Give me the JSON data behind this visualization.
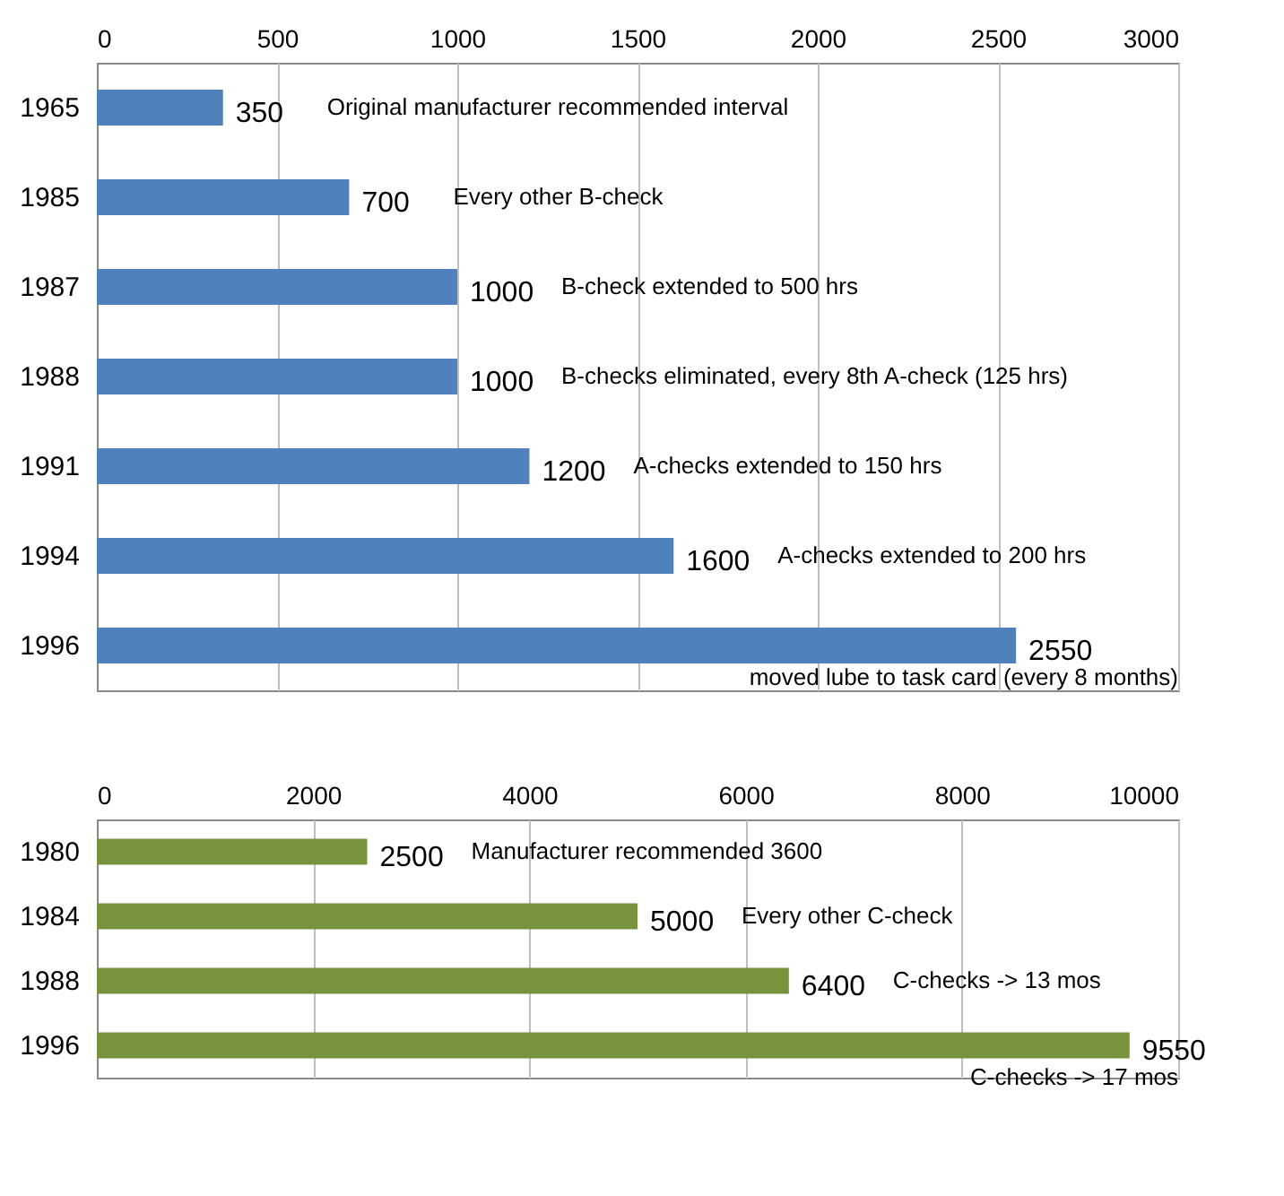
{
  "chart_data": [
    {
      "type": "bar",
      "orientation": "horizontal",
      "categories": [
        "1965",
        "1985",
        "1987",
        "1988",
        "1991",
        "1994",
        "1996"
      ],
      "series": [
        {
          "color": "#4f81bd",
          "values": [
            350,
            700,
            1000,
            1000,
            1200,
            1600,
            2550
          ]
        }
      ],
      "xlim": [
        0,
        3000
      ],
      "xticks": [
        0,
        500,
        1000,
        1500,
        2000,
        2500,
        3000
      ],
      "grid": "x",
      "data_labels": true,
      "legend": false,
      "annotations": [
        "Original manufacturer recommended interval",
        "Every other B-check",
        "B-check extended to 500 hrs",
        "B-checks eliminated, every 8th A-check (125 hrs)",
        "A-checks extended to 150 hrs",
        "A-checks extended to 200 hrs",
        "moved lube to task card (every 8 months)"
      ]
    },
    {
      "type": "bar",
      "orientation": "horizontal",
      "categories": [
        "1980",
        "1984",
        "1988",
        "1996"
      ],
      "series": [
        {
          "color": "#77933c",
          "values": [
            2500,
            5000,
            6400,
            9550
          ]
        }
      ],
      "xlim": [
        0,
        10000
      ],
      "xticks": [
        0,
        2000,
        4000,
        6000,
        8000,
        10000
      ],
      "grid": "x",
      "data_labels": true,
      "legend": false,
      "annotations": [
        "Manufacturer recommended 3600",
        "Every other C-check",
        "C-checks -> 13 mos",
        "C-checks -> 17 mos"
      ]
    }
  ]
}
